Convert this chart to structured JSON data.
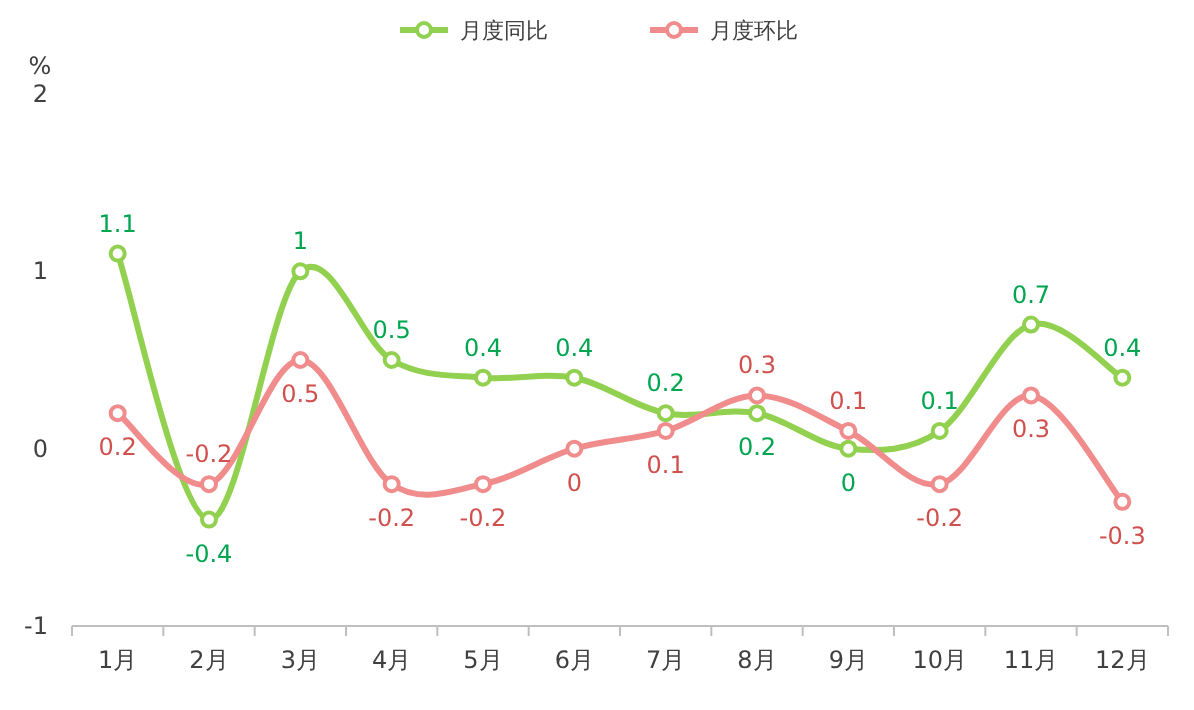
{
  "chart_data": {
    "type": "line",
    "ylabel": "%",
    "categories": [
      "1月",
      "2月",
      "3月",
      "4月",
      "5月",
      "6月",
      "7月",
      "8月",
      "9月",
      "10月",
      "11月",
      "12月"
    ],
    "series": [
      {
        "name": "月度同比",
        "color": "#92d050",
        "values": [
          1.1,
          -0.4,
          1,
          0.5,
          0.4,
          0.4,
          0.2,
          0.2,
          0,
          0.1,
          0.7,
          0.4
        ]
      },
      {
        "name": "月度环比",
        "color": "#f08c8c",
        "values": [
          0.2,
          -0.2,
          0.5,
          -0.2,
          -0.2,
          0,
          0.1,
          0.3,
          0.1,
          -0.2,
          0.3,
          -0.3
        ]
      }
    ],
    "ylim": [
      -1,
      2
    ],
    "yticks": [
      -1,
      0,
      1,
      2
    ],
    "grid": false,
    "legend": "top",
    "marker": "circle",
    "line_style": "solid",
    "data_labels": true
  }
}
